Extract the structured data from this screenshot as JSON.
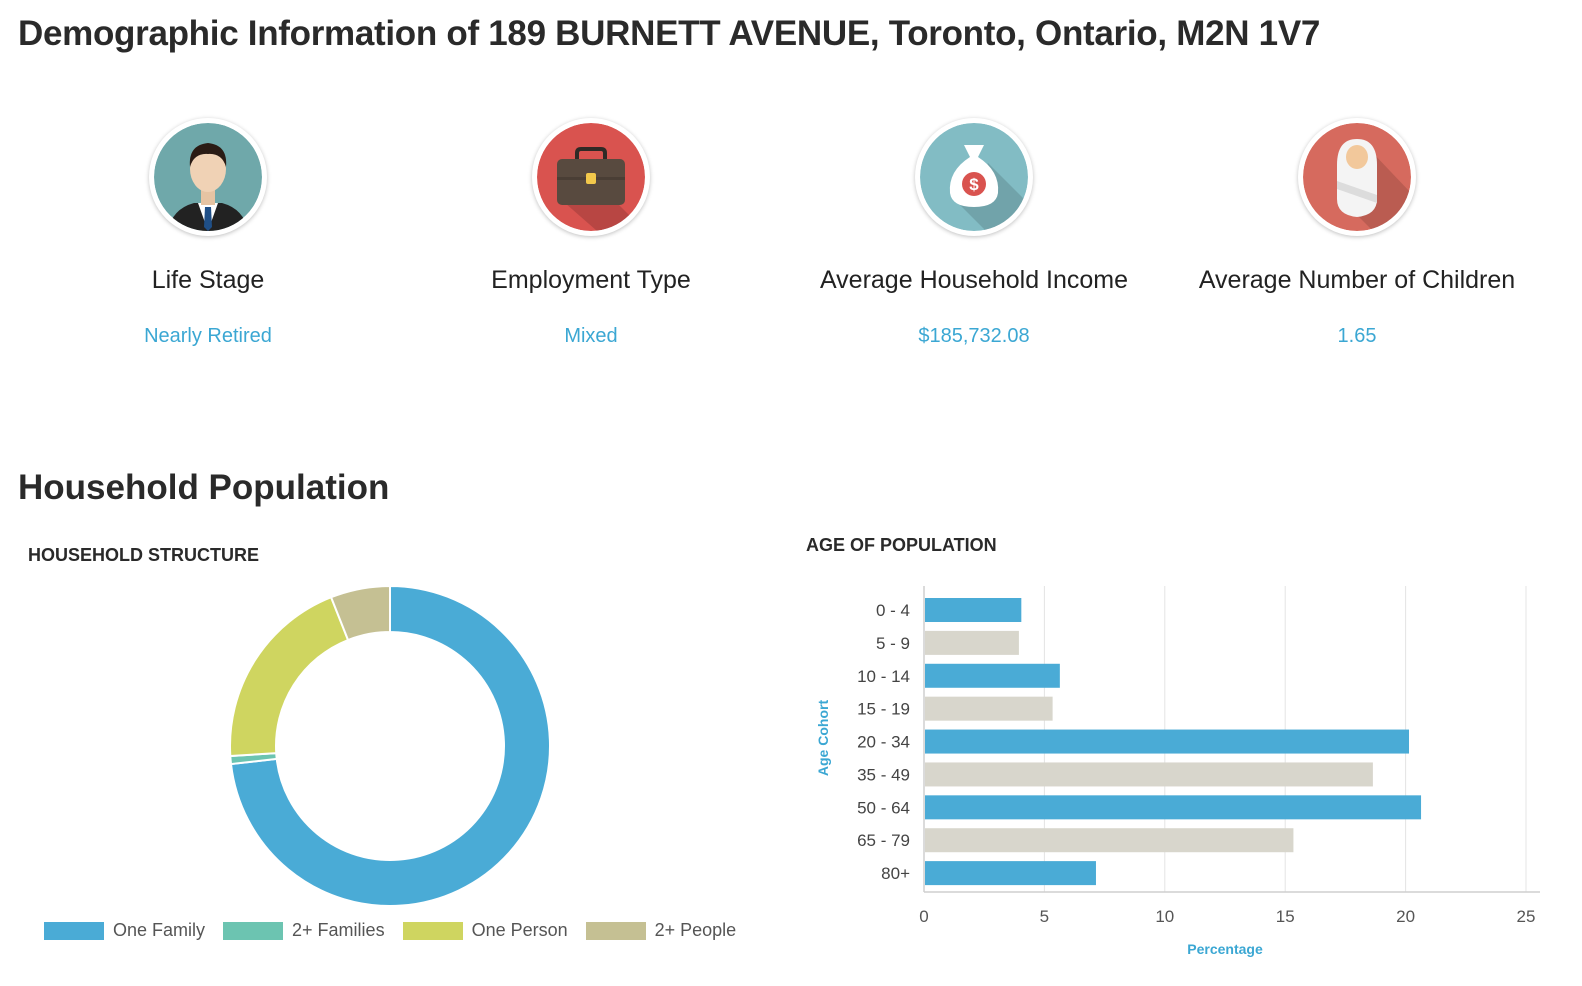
{
  "page_title": "Demographic Information of 189 BURNETT AVENUE, Toronto, Ontario, M2N 1V7",
  "stats": [
    {
      "icon": "person-icon",
      "label": "Life Stage",
      "value": "Nearly Retired",
      "color": "#6fa8aa"
    },
    {
      "icon": "briefcase-icon",
      "label": "Employment Type",
      "value": "Mixed",
      "color": "#d9534f"
    },
    {
      "icon": "money-bag-icon",
      "label": "Average Household Income",
      "value": "$185,732.08",
      "color": "#82bcc4"
    },
    {
      "icon": "baby-icon",
      "label": "Average Number of Children",
      "value": "1.65",
      "color": "#d66a5e"
    }
  ],
  "section_title": "Household Population",
  "chart_data": [
    {
      "type": "pie",
      "title": "HOUSEHOLD STRUCTURE",
      "categories": [
        "One Family",
        "2+ Families",
        "One Person",
        "2+ People"
      ],
      "values": [
        73.2,
        0.8,
        20.0,
        6.0
      ],
      "colors": [
        "#4aabd6",
        "#6cc4b1",
        "#cfd560",
        "#c5c093"
      ],
      "legend": "bottom"
    },
    {
      "type": "bar",
      "orientation": "horizontal",
      "title": "AGE OF POPULATION",
      "categories": [
        "0 - 4",
        "5 - 9",
        "10 - 14",
        "15 - 19",
        "20 - 34",
        "35 - 49",
        "50 - 64",
        "65 - 79",
        "80+"
      ],
      "values": [
        4.0,
        3.9,
        5.6,
        5.3,
        20.1,
        18.6,
        20.6,
        15.3,
        7.1
      ],
      "colors": [
        "#4aabd6",
        "#d8d6cc"
      ],
      "xlabel": "Percentage",
      "ylabel": "Age Cohort",
      "xlim": [
        0,
        25
      ],
      "xticks": [
        0,
        5,
        10,
        15,
        20,
        25
      ],
      "grid": true
    }
  ]
}
